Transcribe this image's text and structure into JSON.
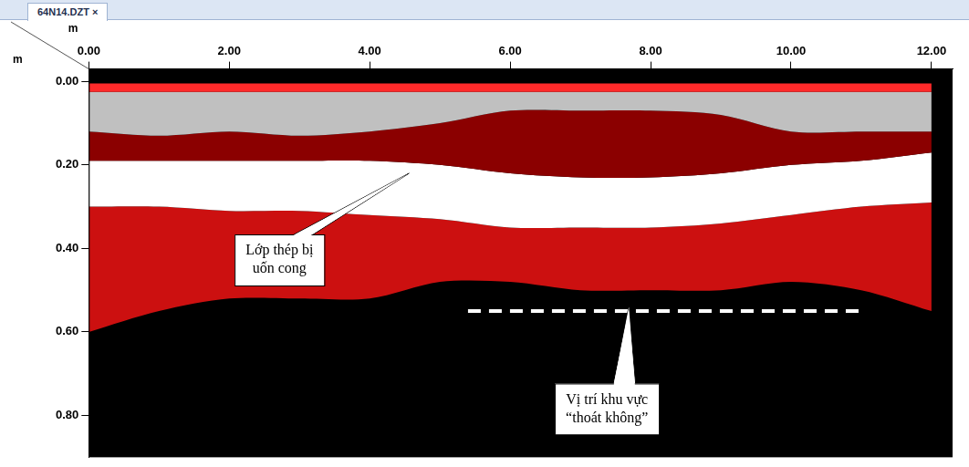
{
  "chart_data": {
    "type": "radargram",
    "title": "64N14.DZT ×",
    "x_label": "m",
    "y_label": "m",
    "xlim": [
      0,
      12.3
    ],
    "xticks": [
      {
        "value": 0,
        "label": "0.00"
      },
      {
        "value": 2,
        "label": "2.00"
      },
      {
        "value": 4,
        "label": "4.00"
      },
      {
        "value": 6,
        "label": "6.00"
      },
      {
        "value": 8,
        "label": "8.00"
      },
      {
        "value": 10,
        "label": "10.00"
      },
      {
        "value": 12,
        "label": "12.00"
      }
    ],
    "ylim": [
      -0.03,
      0.9
    ],
    "yticks": [
      {
        "value": 0,
        "label": "0.00"
      },
      {
        "value": 0.2,
        "label": "0.20"
      },
      {
        "value": 0.4,
        "label": "0.40"
      },
      {
        "value": 0.6,
        "label": "0.60"
      },
      {
        "value": 0.8,
        "label": "0.80"
      }
    ],
    "grid": false,
    "x": [
      0,
      1,
      2,
      3,
      4,
      5,
      6,
      7,
      8,
      9,
      10,
      11,
      12
    ],
    "layers": [
      {
        "color": "#ff2a2a",
        "top": [
          0.005,
          0.005,
          0.005,
          0.005,
          0.005,
          0.005,
          0.005,
          0.005,
          0.005,
          0.005,
          0.005,
          0.005,
          0.005
        ],
        "bottom": [
          0.025,
          0.025,
          0.025,
          0.025,
          0.025,
          0.025,
          0.025,
          0.025,
          0.025,
          0.025,
          0.025,
          0.025,
          0.025
        ]
      },
      {
        "color": "#c0c0c0",
        "top": [
          0.025,
          0.025,
          0.025,
          0.025,
          0.025,
          0.025,
          0.025,
          0.025,
          0.025,
          0.025,
          0.025,
          0.025,
          0.025
        ],
        "bottom": [
          0.12,
          0.13,
          0.12,
          0.13,
          0.12,
          0.1,
          0.07,
          0.07,
          0.07,
          0.08,
          0.12,
          0.12,
          0.12
        ]
      },
      {
        "color": "#8b0000",
        "top": [
          0.12,
          0.13,
          0.12,
          0.13,
          0.12,
          0.1,
          0.07,
          0.07,
          0.07,
          0.08,
          0.12,
          0.12,
          0.12
        ],
        "bottom": [
          0.19,
          0.19,
          0.19,
          0.19,
          0.19,
          0.2,
          0.22,
          0.23,
          0.23,
          0.22,
          0.2,
          0.19,
          0.17
        ]
      },
      {
        "color": "#ffffff",
        "top": [
          0.19,
          0.19,
          0.19,
          0.19,
          0.19,
          0.2,
          0.22,
          0.23,
          0.23,
          0.22,
          0.2,
          0.19,
          0.17
        ],
        "bottom": [
          0.3,
          0.3,
          0.31,
          0.31,
          0.32,
          0.33,
          0.35,
          0.35,
          0.35,
          0.34,
          0.32,
          0.3,
          0.29
        ]
      },
      {
        "color": "#cc1010",
        "top": [
          0.3,
          0.3,
          0.31,
          0.31,
          0.32,
          0.33,
          0.35,
          0.35,
          0.35,
          0.34,
          0.32,
          0.3,
          0.29
        ],
        "bottom": [
          0.6,
          0.55,
          0.52,
          0.52,
          0.52,
          0.48,
          0.48,
          0.5,
          0.5,
          0.5,
          0.48,
          0.5,
          0.55
        ]
      }
    ],
    "series": [
      {
        "type": "line",
        "color": "#ffffff",
        "line_style": "dashed",
        "x": [
          5.4,
          11.0
        ],
        "values": [
          0.55,
          0.55
        ]
      }
    ],
    "annotations": [
      {
        "text": "Lớp thép bị uốn cong",
        "x": 4.56,
        "y": 0.22
      },
      {
        "text": "Vị trí khu vực “thoát không”",
        "x": 7.69,
        "y": 0.54
      }
    ]
  }
}
